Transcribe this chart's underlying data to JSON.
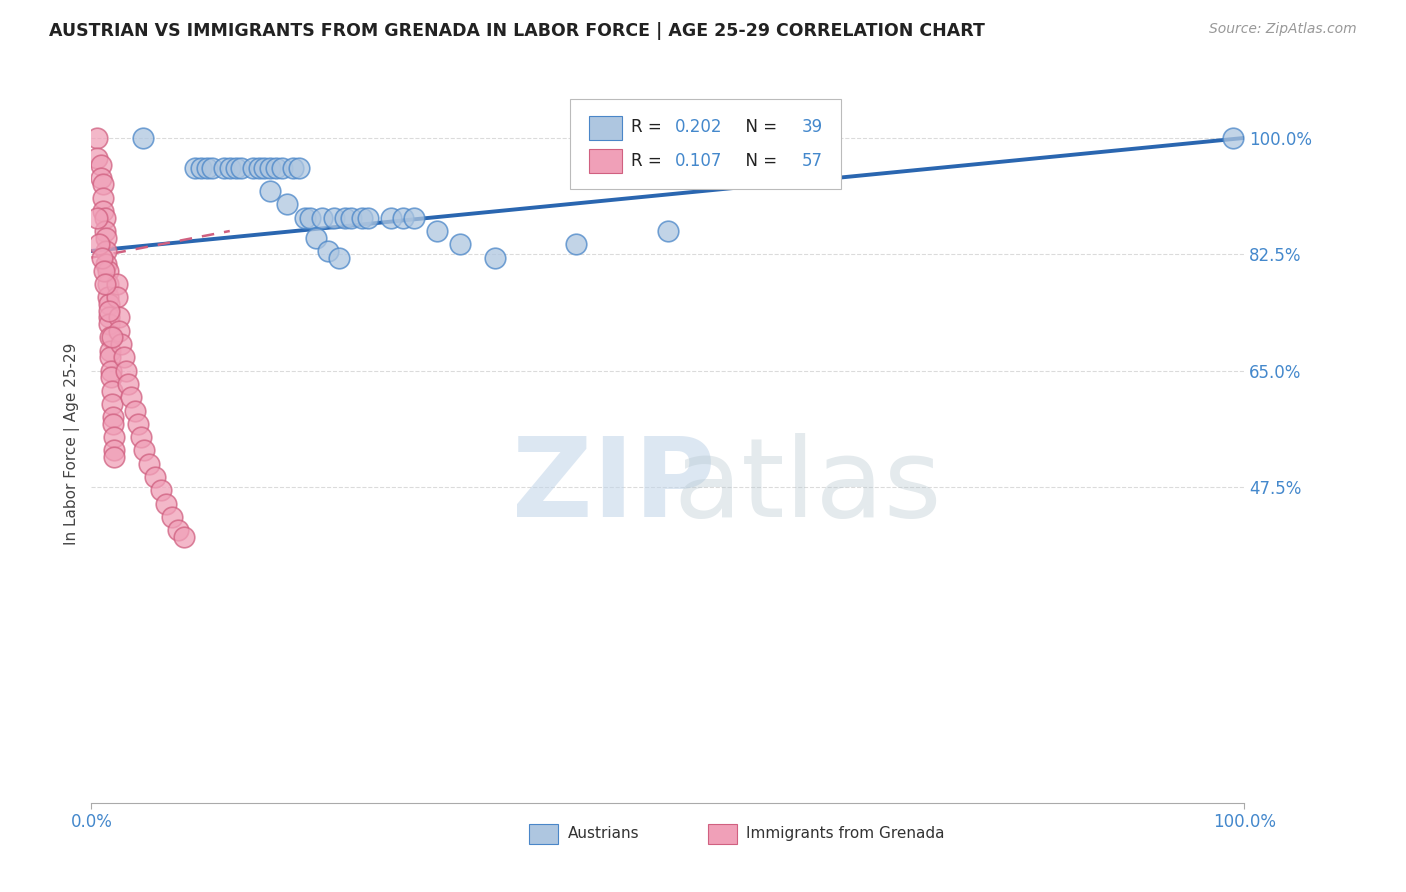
{
  "title": "AUSTRIAN VS IMMIGRANTS FROM GRENADA IN LABOR FORCE | AGE 25-29 CORRELATION CHART",
  "source": "Source: ZipAtlas.com",
  "ylabel": "In Labor Force | Age 25-29",
  "xlim": [
    0.0,
    1.0
  ],
  "ylim": [
    0.0,
    1.08
  ],
  "austrians_R": 0.202,
  "austrians_N": 39,
  "grenada_R": 0.107,
  "grenada_N": 57,
  "background_color": "#ffffff",
  "grid_color": "#cccccc",
  "blue_fill": "#aec6e0",
  "blue_edge": "#4a86c8",
  "blue_line": "#2a66b0",
  "pink_fill": "#f0a0b8",
  "pink_edge": "#d06080",
  "pink_line": "#d06080",
  "title_color": "#222222",
  "source_color": "#999999",
  "axis_label_color": "#444444",
  "tick_color": "#4488cc",
  "watermark_blue": "#c0d4e8",
  "watermark_gray": "#b8c8d0",
  "austrians_x": [
    0.045,
    0.09,
    0.095,
    0.1,
    0.105,
    0.115,
    0.12,
    0.125,
    0.13,
    0.14,
    0.145,
    0.15,
    0.155,
    0.16,
    0.165,
    0.175,
    0.18,
    0.185,
    0.19,
    0.2,
    0.21,
    0.22,
    0.225,
    0.235,
    0.24,
    0.26,
    0.27,
    0.28,
    0.3,
    0.32,
    0.155,
    0.17,
    0.195,
    0.205,
    0.215,
    0.35,
    0.42,
    0.5,
    0.99
  ],
  "austrians_y": [
    1.0,
    0.955,
    0.955,
    0.955,
    0.955,
    0.955,
    0.955,
    0.955,
    0.955,
    0.955,
    0.955,
    0.955,
    0.955,
    0.955,
    0.955,
    0.955,
    0.955,
    0.88,
    0.88,
    0.88,
    0.88,
    0.88,
    0.88,
    0.88,
    0.88,
    0.88,
    0.88,
    0.88,
    0.86,
    0.84,
    0.92,
    0.9,
    0.85,
    0.83,
    0.82,
    0.82,
    0.84,
    0.86,
    1.0
  ],
  "grenada_x": [
    0.005,
    0.005,
    0.008,
    0.008,
    0.01,
    0.01,
    0.01,
    0.012,
    0.012,
    0.013,
    0.013,
    0.013,
    0.014,
    0.014,
    0.014,
    0.015,
    0.015,
    0.015,
    0.016,
    0.016,
    0.016,
    0.017,
    0.017,
    0.018,
    0.018,
    0.019,
    0.019,
    0.02,
    0.02,
    0.02,
    0.022,
    0.022,
    0.024,
    0.024,
    0.026,
    0.028,
    0.03,
    0.032,
    0.034,
    0.038,
    0.04,
    0.043,
    0.046,
    0.05,
    0.055,
    0.06,
    0.065,
    0.07,
    0.075,
    0.08,
    0.005,
    0.007,
    0.009,
    0.011,
    0.012,
    0.015,
    0.018
  ],
  "grenada_y": [
    1.0,
    0.97,
    0.96,
    0.94,
    0.93,
    0.91,
    0.89,
    0.88,
    0.86,
    0.85,
    0.83,
    0.81,
    0.8,
    0.78,
    0.76,
    0.75,
    0.73,
    0.72,
    0.7,
    0.68,
    0.67,
    0.65,
    0.64,
    0.62,
    0.6,
    0.58,
    0.57,
    0.55,
    0.53,
    0.52,
    0.78,
    0.76,
    0.73,
    0.71,
    0.69,
    0.67,
    0.65,
    0.63,
    0.61,
    0.59,
    0.57,
    0.55,
    0.53,
    0.51,
    0.49,
    0.47,
    0.45,
    0.43,
    0.41,
    0.4,
    0.88,
    0.84,
    0.82,
    0.8,
    0.78,
    0.74,
    0.7
  ],
  "ytick_vals": [
    1.0,
    0.825,
    0.65,
    0.475
  ],
  "ytick_labels": [
    "100.0%",
    "82.5%",
    "65.0%",
    "47.5%"
  ],
  "xtick_vals": [
    0.0,
    1.0
  ],
  "xtick_labels": [
    "0.0%",
    "100.0%"
  ]
}
